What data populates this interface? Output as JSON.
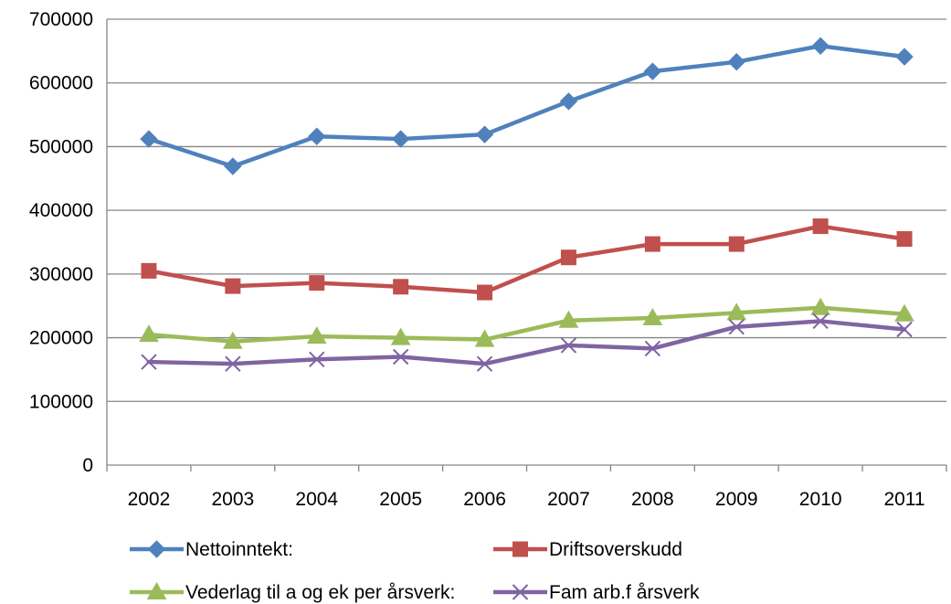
{
  "chart_data": {
    "type": "line",
    "categories": [
      "2002",
      "2003",
      "2004",
      "2005",
      "2006",
      "2007",
      "2008",
      "2009",
      "2010",
      "2011"
    ],
    "ylim": [
      0,
      700000
    ],
    "yticks": [
      "0",
      "100000",
      "200000",
      "300000",
      "400000",
      "500000",
      "600000",
      "700000"
    ],
    "grid": true,
    "legend_position": "bottom",
    "series": [
      {
        "name": "Nettoinntekt:",
        "color": "#4F81BD",
        "marker": "diamond",
        "values": [
          512000,
          469000,
          516000,
          512000,
          519000,
          571000,
          618000,
          633000,
          658000,
          641000
        ]
      },
      {
        "name": "Driftsoverskudd",
        "color": "#C0504D",
        "marker": "square",
        "values": [
          305000,
          281000,
          286000,
          280000,
          271000,
          326000,
          347000,
          347000,
          375000,
          355000
        ]
      },
      {
        "name": "Vederlag til a og ek per årsverk:",
        "color": "#9BBB59",
        "marker": "triangle",
        "values": [
          205000,
          194000,
          202000,
          200000,
          197000,
          227000,
          231000,
          239000,
          247000,
          237000
        ]
      },
      {
        "name": "Fam arb.f årsverk",
        "color": "#8064A2",
        "marker": "x",
        "values": [
          162000,
          159000,
          166000,
          170000,
          159000,
          188000,
          183000,
          217000,
          226000,
          213000
        ]
      }
    ]
  }
}
